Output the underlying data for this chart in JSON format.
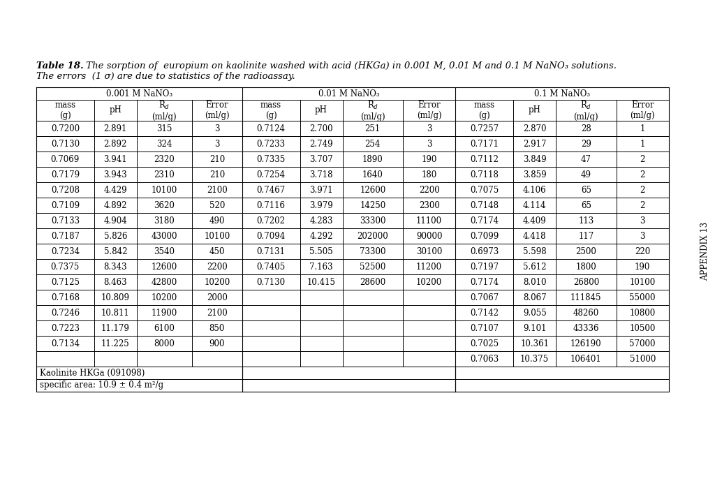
{
  "title_bold": "Table 18.",
  "title_rest": " The sorption of  europium on kaolinite washed with acid (HKGa) in 0.001 M, 0.01 M and 0.1 M NaNO₃ solutions.",
  "subtitle": "The errors  (1 σ) are due to statistics of the radioassay.",
  "col_group_headers": [
    "0.001 M NaNO₃",
    "0.01 M NaNO₃",
    "0.1 M NaNO₃"
  ],
  "data_001": [
    [
      "0.7200",
      "2.891",
      "315",
      "3"
    ],
    [
      "0.7130",
      "2.892",
      "324",
      "3"
    ],
    [
      "0.7069",
      "3.941",
      "2320",
      "210"
    ],
    [
      "0.7179",
      "3.943",
      "2310",
      "210"
    ],
    [
      "0.7208",
      "4.429",
      "10100",
      "2100"
    ],
    [
      "0.7109",
      "4.892",
      "3620",
      "520"
    ],
    [
      "0.7133",
      "4.904",
      "3180",
      "490"
    ],
    [
      "0.7187",
      "5.826",
      "43000",
      "10100"
    ],
    [
      "0.7234",
      "5.842",
      "3540",
      "450"
    ],
    [
      "0.7375",
      "8.343",
      "12600",
      "2200"
    ],
    [
      "0.7125",
      "8.463",
      "42800",
      "10200"
    ],
    [
      "0.7168",
      "10.809",
      "10200",
      "2000"
    ],
    [
      "0.7246",
      "10.811",
      "11900",
      "2100"
    ],
    [
      "0.7223",
      "11.179",
      "6100",
      "850"
    ],
    [
      "0.7134",
      "11.225",
      "8000",
      "900"
    ],
    [
      "",
      "",
      "",
      ""
    ]
  ],
  "data_01": [
    [
      "0.7124",
      "2.700",
      "251",
      "3"
    ],
    [
      "0.7233",
      "2.749",
      "254",
      "3"
    ],
    [
      "0.7335",
      "3.707",
      "1890",
      "190"
    ],
    [
      "0.7254",
      "3.718",
      "1640",
      "180"
    ],
    [
      "0.7467",
      "3.971",
      "12600",
      "2200"
    ],
    [
      "0.7116",
      "3.979",
      "14250",
      "2300"
    ],
    [
      "0.7202",
      "4.283",
      "33300",
      "11100"
    ],
    [
      "0.7094",
      "4.292",
      "202000",
      "90000"
    ],
    [
      "0.7131",
      "5.505",
      "73300",
      "30100"
    ],
    [
      "0.7405",
      "7.163",
      "52500",
      "11200"
    ],
    [
      "0.7130",
      "10.415",
      "28600",
      "10200"
    ],
    [
      "",
      "",
      "",
      ""
    ],
    [
      "",
      "",
      "",
      ""
    ],
    [
      "",
      "",
      "",
      ""
    ],
    [
      "",
      "",
      "",
      ""
    ],
    [
      "",
      "",
      "",
      ""
    ]
  ],
  "data_1": [
    [
      "0.7257",
      "2.870",
      "28",
      "1"
    ],
    [
      "0.7171",
      "2.917",
      "29",
      "1"
    ],
    [
      "0.7112",
      "3.849",
      "47",
      "2"
    ],
    [
      "0.7118",
      "3.859",
      "49",
      "2"
    ],
    [
      "0.7075",
      "4.106",
      "65",
      "2"
    ],
    [
      "0.7148",
      "4.114",
      "65",
      "2"
    ],
    [
      "0.7174",
      "4.409",
      "113",
      "3"
    ],
    [
      "0.7099",
      "4.418",
      "117",
      "3"
    ],
    [
      "0.6973",
      "5.598",
      "2500",
      "220"
    ],
    [
      "0.7197",
      "5.612",
      "1800",
      "190"
    ],
    [
      "0.7174",
      "8.010",
      "26800",
      "10100"
    ],
    [
      "0.7067",
      "8.067",
      "111845",
      "55000"
    ],
    [
      "0.7142",
      "9.055",
      "48260",
      "10800"
    ],
    [
      "0.7107",
      "9.101",
      "43336",
      "10500"
    ],
    [
      "0.7025",
      "10.361",
      "126190",
      "57000"
    ],
    [
      "0.7063",
      "10.375",
      "106401",
      "51000"
    ]
  ],
  "footer": "Kaolinite HKGa (091098)",
  "footer2": "specific area: 10.9 ± 0.4 m²/g",
  "side_text": "APPENDIX 13",
  "bg_color": "#ffffff",
  "col_widths_rel": [
    1.15,
    0.85,
    1.1,
    1.0,
    1.15,
    0.85,
    1.2,
    1.05,
    1.15,
    0.85,
    1.2,
    1.05
  ]
}
